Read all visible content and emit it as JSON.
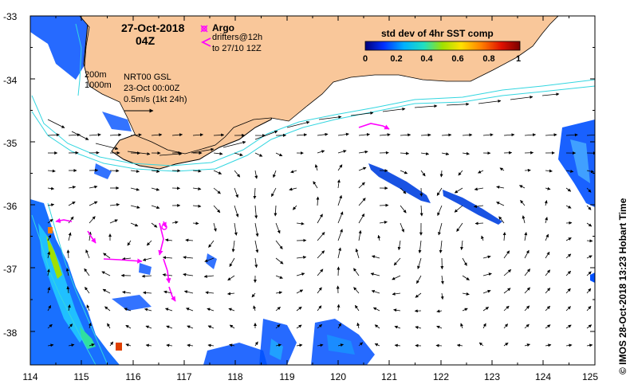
{
  "header": {
    "date": "27-Oct-2018",
    "time": "04Z",
    "argo_label": "Argo",
    "drifters_label": "drifters@12h",
    "drifters_to": "to 27/10 12Z"
  },
  "colorbar": {
    "title": "std dev of 4hr SST comp",
    "ticks": [
      "0",
      "0.2",
      "0.4",
      "0.6",
      "0.8",
      "1"
    ],
    "stops": [
      "#00007a",
      "#0030ff",
      "#00b0ff",
      "#20e0c0",
      "#a0e000",
      "#ffe000",
      "#ff8000",
      "#e01000",
      "#7a0000"
    ]
  },
  "annotations": {
    "iso200": "200m",
    "iso1000": "1000m",
    "product": "NRT00 GSL",
    "product_date": "23-Oct 00:00Z",
    "scale_text": "0.5m/s (1kt 24h)"
  },
  "axes": {
    "lon_ticks": [
      "114",
      "115",
      "116",
      "117",
      "118",
      "119",
      "120",
      "121",
      "122",
      "123",
      "124",
      "125"
    ],
    "lat_ticks": [
      "-33",
      "-34",
      "-35",
      "-36",
      "-37",
      "-38"
    ],
    "lon_range": [
      114,
      125
    ],
    "lat_range": [
      -38.5,
      -33
    ]
  },
  "credit": "© IMOS 28-Oct-2018 13:23 Hobart Time",
  "colors": {
    "land": "#f9c79a",
    "isobath": "#33d6e0",
    "drifter": "#ff00ff",
    "vector": "#000000"
  },
  "icons": [
    "argo-float-icon",
    "drifter-arrow-icon",
    "scale-arrow-icon"
  ]
}
